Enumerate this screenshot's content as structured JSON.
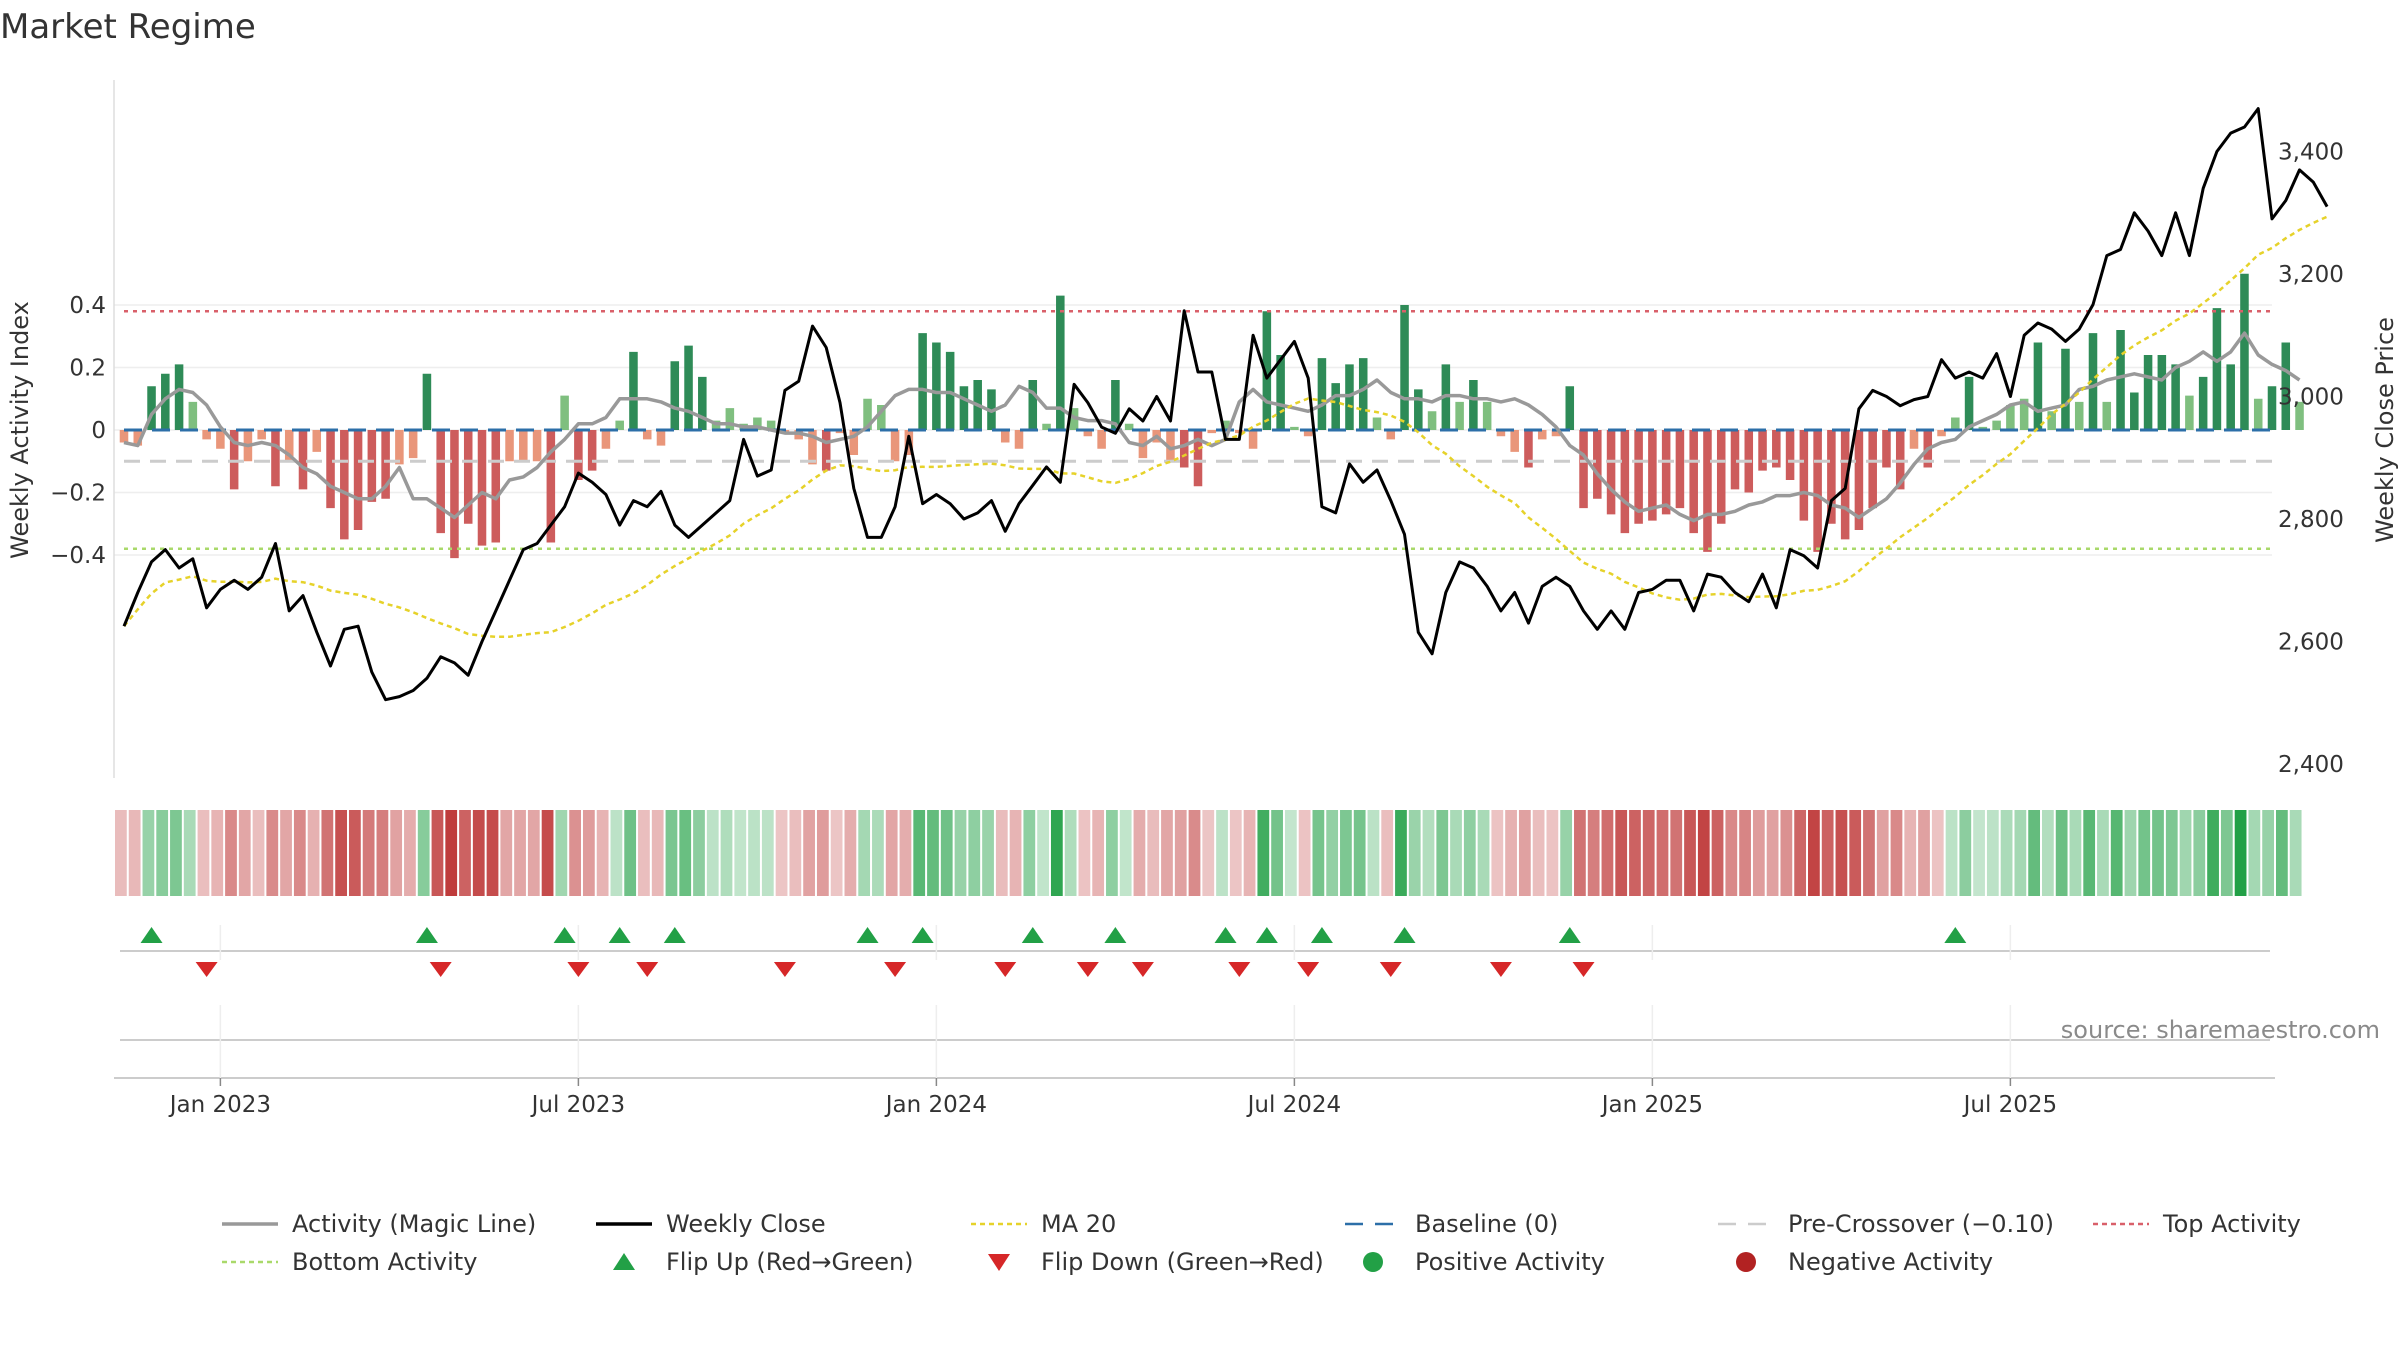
{
  "chart_data": {
    "type": "bar",
    "title": "Market Regime",
    "y_left_label": "Weekly Activity Index",
    "y_right_label": "Weekly Close Price",
    "y_left_ticks": [
      "0.4",
      "0.2",
      "0",
      "−0.2",
      "−0.4"
    ],
    "y_left_tick_values": [
      0.4,
      0.2,
      0,
      -0.2,
      -0.4
    ],
    "y_right_ticks": [
      "3,400",
      "3,200",
      "3,000",
      "2,800",
      "2,600",
      "2,400"
    ],
    "y_right_tick_values": [
      3400,
      3200,
      3000,
      2800,
      2600,
      2400
    ],
    "y_left_range": [
      -0.56,
      0.56
    ],
    "y_right_range": [
      2400,
      3520
    ],
    "x_tick_labels": [
      "Jan 2023",
      "Jul 2023",
      "Jan 2024",
      "Jul 2024",
      "Jan 2025",
      "Jul 2025"
    ],
    "x_tick_weeks": [
      7,
      33,
      59,
      85,
      111,
      137
    ],
    "weeks": 157,
    "top_activity": 0.38,
    "bottom_activity": -0.38,
    "pre_crossover": -0.1,
    "baseline": 0,
    "activity": [
      -0.04,
      -0.05,
      0.14,
      0.18,
      0.21,
      0.09,
      -0.03,
      -0.06,
      -0.19,
      -0.1,
      -0.03,
      -0.18,
      -0.1,
      -0.19,
      -0.07,
      -0.25,
      -0.35,
      -0.32,
      -0.23,
      -0.22,
      -0.11,
      -0.09,
      0.18,
      -0.33,
      -0.41,
      -0.3,
      -0.37,
      -0.36,
      -0.1,
      -0.1,
      -0.1,
      -0.36,
      0.11,
      -0.16,
      -0.13,
      -0.06,
      0.03,
      0.25,
      -0.03,
      -0.05,
      0.22,
      0.27,
      0.17,
      0.03,
      0.07,
      0.02,
      0.04,
      0.03,
      -0.01,
      -0.03,
      -0.11,
      -0.13,
      -0.01,
      -0.08,
      0.1,
      0.08,
      -0.1,
      -0.08,
      0.31,
      0.28,
      0.25,
      0.14,
      0.16,
      0.13,
      -0.04,
      -0.06,
      0.16,
      0.02,
      0.43,
      0.07,
      -0.02,
      -0.06,
      0.16,
      0.02,
      -0.09,
      -0.04,
      -0.1,
      -0.12,
      -0.18,
      -0.01,
      0.03,
      -0.01,
      -0.06,
      0.38,
      0.24,
      0.01,
      -0.02,
      0.23,
      0.15,
      0.21,
      0.23,
      0.04,
      -0.03,
      0.4,
      0.13,
      0.06,
      0.21,
      0.09,
      0.16,
      0.09,
      -0.02,
      -0.07,
      -0.12,
      -0.03,
      -0.02,
      0.14,
      -0.25,
      -0.22,
      -0.27,
      -0.33,
      -0.3,
      -0.29,
      -0.27,
      -0.25,
      -0.33,
      -0.39,
      -0.3,
      -0.19,
      -0.2,
      -0.13,
      -0.12,
      -0.16,
      -0.29,
      -0.39,
      -0.3,
      -0.35,
      -0.32,
      -0.25,
      -0.12,
      -0.19,
      -0.06,
      -0.12,
      -0.02,
      0.04,
      0.17,
      0.01,
      0.03,
      0.08,
      0.1,
      0.28,
      0.06,
      0.26,
      0.09,
      0.31,
      0.09,
      0.32,
      0.12,
      0.24,
      0.24,
      0.21,
      0.11,
      0.17,
      0.39,
      0.21,
      0.5,
      0.1,
      0.14,
      0.28,
      0.09
    ],
    "magic_line": [
      -0.04,
      -0.05,
      0.05,
      0.1,
      0.13,
      0.12,
      0.08,
      0.01,
      -0.04,
      -0.05,
      -0.04,
      -0.05,
      -0.08,
      -0.12,
      -0.14,
      -0.18,
      -0.2,
      -0.22,
      -0.22,
      -0.18,
      -0.12,
      -0.22,
      -0.22,
      -0.25,
      -0.28,
      -0.24,
      -0.2,
      -0.22,
      -0.16,
      -0.15,
      -0.12,
      -0.07,
      -0.03,
      0.02,
      0.02,
      0.04,
      0.1,
      0.1,
      0.1,
      0.09,
      0.07,
      0.06,
      0.04,
      0.02,
      0.02,
      0.01,
      0.01,
      0.0,
      -0.01,
      -0.01,
      -0.02,
      -0.04,
      -0.03,
      -0.02,
      0.01,
      0.06,
      0.11,
      0.13,
      0.13,
      0.12,
      0.12,
      0.1,
      0.08,
      0.06,
      0.08,
      0.14,
      0.12,
      0.07,
      0.07,
      0.04,
      0.03,
      0.03,
      0.02,
      -0.04,
      -0.05,
      -0.02,
      -0.06,
      -0.05,
      -0.03,
      -0.05,
      -0.03,
      0.09,
      0.13,
      0.09,
      0.08,
      0.07,
      0.06,
      0.08,
      0.11,
      0.11,
      0.13,
      0.16,
      0.12,
      0.1,
      0.1,
      0.09,
      0.11,
      0.11,
      0.1,
      0.1,
      0.09,
      0.1,
      0.08,
      0.05,
      0.01,
      -0.05,
      -0.08,
      -0.14,
      -0.19,
      -0.23,
      -0.26,
      -0.25,
      -0.24,
      -0.27,
      -0.29,
      -0.27,
      -0.27,
      -0.26,
      -0.24,
      -0.23,
      -0.21,
      -0.21,
      -0.2,
      -0.21,
      -0.24,
      -0.25,
      -0.28,
      -0.25,
      -0.22,
      -0.17,
      -0.11,
      -0.06,
      -0.04,
      -0.03,
      0.01,
      0.03,
      0.05,
      0.08,
      0.09,
      0.06,
      0.07,
      0.08,
      0.13,
      0.14,
      0.16,
      0.17,
      0.18,
      0.17,
      0.16,
      0.2,
      0.22,
      0.25,
      0.22,
      0.25,
      0.31,
      0.24,
      0.21,
      0.19,
      0.16
    ],
    "close": [
      2625,
      2680,
      2730,
      2750,
      2720,
      2735,
      2655,
      2685,
      2700,
      2685,
      2705,
      2760,
      2650,
      2675,
      2615,
      2560,
      2620,
      2625,
      2550,
      2505,
      2510,
      2520,
      2540,
      2575,
      2565,
      2545,
      2600,
      2650,
      2700,
      2750,
      2760,
      2790,
      2820,
      2875,
      2860,
      2840,
      2790,
      2830,
      2820,
      2845,
      2790,
      2770,
      2790,
      2810,
      2830,
      2930,
      2870,
      2880,
      3010,
      3025,
      3115,
      3080,
      2990,
      2850,
      2770,
      2770,
      2820,
      2935,
      2825,
      2840,
      2825,
      2800,
      2810,
      2830,
      2780,
      2825,
      2855,
      2885,
      2860,
      3020,
      2990,
      2950,
      2940,
      2980,
      2960,
      3000,
      2960,
      3140,
      3040,
      3040,
      2930,
      2930,
      3100,
      3030,
      3060,
      3090,
      3030,
      2820,
      2810,
      2890,
      2860,
      2880,
      2830,
      2775,
      2615,
      2580,
      2680,
      2730,
      2720,
      2690,
      2650,
      2680,
      2630,
      2690,
      2705,
      2690,
      2650,
      2620,
      2650,
      2620,
      2680,
      2685,
      2700,
      2700,
      2650,
      2710,
      2705,
      2680,
      2665,
      2710,
      2655,
      2750,
      2740,
      2720,
      2830,
      2850,
      2980,
      3010,
      3000,
      2985,
      2995,
      3000,
      3060,
      3030,
      3040,
      3030,
      3070,
      3000,
      3100,
      3120,
      3110,
      3090,
      3110,
      3150,
      3230,
      3240,
      3300,
      3270,
      3230,
      3300,
      3230,
      3340,
      3400,
      3430,
      3440,
      3470,
      3290,
      3320,
      3370,
      3350,
      3310
    ]
  },
  "legend": [
    {
      "label": "Activity (Magic Line)",
      "kind": "line",
      "color": "#999999"
    },
    {
      "label": "Weekly Close",
      "kind": "line",
      "color": "#000000"
    },
    {
      "label": "MA 20",
      "kind": "dotted",
      "color": "#e6d22a"
    },
    {
      "label": "Baseline (0)",
      "kind": "dashed",
      "color": "#2c6fa8"
    },
    {
      "label": "Pre-Crossover (−0.10)",
      "kind": "dashed",
      "color": "#cccccc"
    },
    {
      "label": "Top Activity",
      "kind": "dotted",
      "color": "#d9606a"
    },
    {
      "label": "Bottom Activity",
      "kind": "dotted",
      "color": "#a9d96a"
    },
    {
      "label": "Flip Up (Red→Green)",
      "kind": "tri-up",
      "color": "#22a046"
    },
    {
      "label": "Flip Down (Green→Red)",
      "kind": "tri-down",
      "color": "#d62728"
    },
    {
      "label": "Positive Activity",
      "kind": "dot",
      "color": "#22a046"
    },
    {
      "label": "Negative Activity",
      "kind": "dot",
      "color": "#b22222"
    }
  ],
  "source": "source: sharemaestro.com",
  "colors": {
    "pos_strong": "#2e8b57",
    "pos_light": "#7fbf7f",
    "neg_strong": "#cd5c5c",
    "neg_light": "#e9967a",
    "close": "#000000",
    "magic": "#999999",
    "ma": "#e6d22a",
    "top": "#d9606a",
    "bottom": "#a9d96a",
    "baseline": "#2c6fa8",
    "pre": "#cccccc"
  }
}
